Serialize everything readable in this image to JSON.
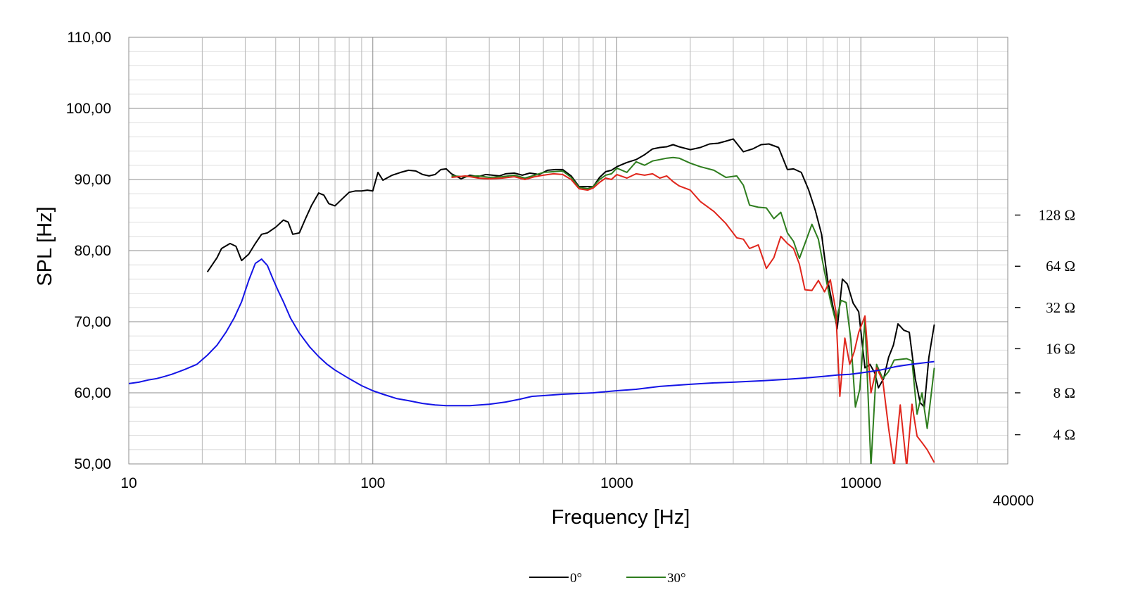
{
  "chart_data": {
    "type": "line",
    "title": "",
    "xlabel": "Frequency [Hz]",
    "ylabel": "SPL [Hz]",
    "x_scale": "log",
    "xlim": [
      10,
      40000
    ],
    "ylim": [
      50,
      110
    ],
    "grid": true,
    "legend_placement": "bottom-center",
    "x_tick_labels": [
      "10",
      "100",
      "1000",
      "10000"
    ],
    "x_extra_label": "40000",
    "y_tick_labels": [
      "110,00",
      "100,00",
      "90,00",
      "80,00",
      "70,00",
      "60,00",
      "50,00"
    ],
    "impedance_axis": {
      "labels": [
        "128 Ω",
        "64 Ω",
        "32 Ω",
        "16 Ω",
        "8 Ω",
        "4 Ω"
      ],
      "spl_positions": [
        85.0,
        77.8,
        72.0,
        66.2,
        60.0,
        54.1
      ]
    },
    "series": [
      {
        "name": "0°",
        "color": "#000000",
        "points": [
          [
            21,
            77.0
          ],
          [
            23,
            79.0
          ],
          [
            24,
            80.3
          ],
          [
            26,
            81.0
          ],
          [
            27.5,
            80.6
          ],
          [
            29,
            78.6
          ],
          [
            31,
            79.5
          ],
          [
            33,
            81.0
          ],
          [
            35,
            82.3
          ],
          [
            37,
            82.5
          ],
          [
            40,
            83.3
          ],
          [
            43,
            84.3
          ],
          [
            45,
            84.0
          ],
          [
            47,
            82.3
          ],
          [
            50,
            82.5
          ],
          [
            53,
            84.5
          ],
          [
            56,
            86.3
          ],
          [
            60,
            88.1
          ],
          [
            63,
            87.8
          ],
          [
            66,
            86.6
          ],
          [
            70,
            86.3
          ],
          [
            75,
            87.3
          ],
          [
            80,
            88.2
          ],
          [
            85,
            88.4
          ],
          [
            90,
            88.4
          ],
          [
            95,
            88.5
          ],
          [
            100,
            88.4
          ],
          [
            105,
            91.0
          ],
          [
            110,
            89.9
          ],
          [
            120,
            90.6
          ],
          [
            130,
            91.0
          ],
          [
            140,
            91.3
          ],
          [
            150,
            91.2
          ],
          [
            160,
            90.7
          ],
          [
            170,
            90.5
          ],
          [
            180,
            90.7
          ],
          [
            190,
            91.4
          ],
          [
            200,
            91.5
          ],
          [
            210,
            90.8
          ],
          [
            230,
            90.1
          ],
          [
            250,
            90.6
          ],
          [
            270,
            90.4
          ],
          [
            290,
            90.7
          ],
          [
            310,
            90.6
          ],
          [
            330,
            90.5
          ],
          [
            350,
            90.8
          ],
          [
            380,
            90.9
          ],
          [
            410,
            90.6
          ],
          [
            440,
            90.9
          ],
          [
            480,
            90.7
          ],
          [
            520,
            91.3
          ],
          [
            560,
            91.4
          ],
          [
            600,
            91.4
          ],
          [
            650,
            90.5
          ],
          [
            700,
            89.0
          ],
          [
            760,
            89.0
          ],
          [
            800,
            89.0
          ],
          [
            850,
            90.3
          ],
          [
            900,
            91.1
          ],
          [
            950,
            91.3
          ],
          [
            1000,
            91.8
          ],
          [
            1100,
            92.4
          ],
          [
            1200,
            92.8
          ],
          [
            1300,
            93.5
          ],
          [
            1400,
            94.3
          ],
          [
            1500,
            94.5
          ],
          [
            1600,
            94.6
          ],
          [
            1700,
            94.9
          ],
          [
            1800,
            94.6
          ],
          [
            2000,
            94.2
          ],
          [
            2200,
            94.5
          ],
          [
            2400,
            95.0
          ],
          [
            2600,
            95.1
          ],
          [
            2800,
            95.4
          ],
          [
            3000,
            95.7
          ],
          [
            3300,
            93.9
          ],
          [
            3600,
            94.3
          ],
          [
            3900,
            94.9
          ],
          [
            4200,
            95.0
          ],
          [
            4600,
            94.5
          ],
          [
            5000,
            91.4
          ],
          [
            5300,
            91.5
          ],
          [
            5700,
            91.0
          ],
          [
            6100,
            88.6
          ],
          [
            6500,
            85.7
          ],
          [
            6900,
            82.3
          ],
          [
            7300,
            76.0
          ],
          [
            7700,
            72.0
          ],
          [
            8000,
            69.0
          ],
          [
            8400,
            76.0
          ],
          [
            8800,
            75.3
          ],
          [
            9300,
            72.6
          ],
          [
            9800,
            71.4
          ],
          [
            10400,
            63.5
          ],
          [
            10900,
            64.0
          ],
          [
            11400,
            62.8
          ],
          [
            11800,
            60.7
          ],
          [
            12400,
            62.0
          ],
          [
            13000,
            65.0
          ],
          [
            13600,
            66.7
          ],
          [
            14200,
            69.7
          ],
          [
            15000,
            68.8
          ],
          [
            15800,
            68.5
          ],
          [
            16700,
            62.0
          ],
          [
            17500,
            58.6
          ],
          [
            18200,
            58.0
          ],
          [
            19000,
            65.0
          ],
          [
            20000,
            69.6
          ]
        ]
      },
      {
        "name": "30°",
        "color": "#2e7d1e",
        "points": [
          [
            210,
            90.5
          ],
          [
            240,
            90.4
          ],
          [
            270,
            90.5
          ],
          [
            300,
            90.3
          ],
          [
            340,
            90.4
          ],
          [
            380,
            90.6
          ],
          [
            420,
            90.2
          ],
          [
            460,
            90.6
          ],
          [
            500,
            91.0
          ],
          [
            550,
            91.1
          ],
          [
            600,
            91.2
          ],
          [
            650,
            90.3
          ],
          [
            700,
            88.9
          ],
          [
            760,
            88.7
          ],
          [
            800,
            89.0
          ],
          [
            850,
            90.0
          ],
          [
            900,
            90.6
          ],
          [
            950,
            90.8
          ],
          [
            1000,
            91.6
          ],
          [
            1100,
            91.0
          ],
          [
            1200,
            92.5
          ],
          [
            1300,
            92.0
          ],
          [
            1400,
            92.6
          ],
          [
            1500,
            92.8
          ],
          [
            1600,
            93.0
          ],
          [
            1700,
            93.1
          ],
          [
            1800,
            93.0
          ],
          [
            2000,
            92.3
          ],
          [
            2200,
            91.8
          ],
          [
            2500,
            91.3
          ],
          [
            2800,
            90.3
          ],
          [
            3100,
            90.5
          ],
          [
            3300,
            89.2
          ],
          [
            3500,
            86.4
          ],
          [
            3800,
            86.1
          ],
          [
            4100,
            86.0
          ],
          [
            4400,
            84.5
          ],
          [
            4700,
            85.4
          ],
          [
            5000,
            82.5
          ],
          [
            5300,
            81.3
          ],
          [
            5600,
            78.9
          ],
          [
            5900,
            81.0
          ],
          [
            6300,
            83.7
          ],
          [
            6700,
            81.6
          ],
          [
            7100,
            77.0
          ],
          [
            7500,
            73.0
          ],
          [
            7900,
            70.0
          ],
          [
            8300,
            73.0
          ],
          [
            8700,
            72.7
          ],
          [
            9100,
            67.5
          ],
          [
            9500,
            58.0
          ],
          [
            9900,
            60.5
          ],
          [
            10400,
            70.3
          ],
          [
            11000,
            49.7
          ],
          [
            11600,
            64.0
          ],
          [
            12300,
            62.0
          ],
          [
            13000,
            63.0
          ],
          [
            13700,
            64.6
          ],
          [
            14500,
            64.7
          ],
          [
            15400,
            64.8
          ],
          [
            16200,
            64.5
          ],
          [
            17000,
            57.0
          ],
          [
            17800,
            60.0
          ],
          [
            18700,
            55.0
          ],
          [
            20000,
            63.5
          ]
        ]
      },
      {
        "name": "",
        "color": "#e0261c",
        "points": [
          [
            210,
            90.3
          ],
          [
            240,
            90.5
          ],
          [
            270,
            90.2
          ],
          [
            300,
            90.1
          ],
          [
            340,
            90.2
          ],
          [
            380,
            90.4
          ],
          [
            420,
            90.0
          ],
          [
            460,
            90.4
          ],
          [
            500,
            90.6
          ],
          [
            550,
            90.8
          ],
          [
            600,
            90.7
          ],
          [
            650,
            90.0
          ],
          [
            700,
            88.7
          ],
          [
            760,
            88.5
          ],
          [
            800,
            88.8
          ],
          [
            850,
            89.6
          ],
          [
            900,
            90.2
          ],
          [
            950,
            90.0
          ],
          [
            1000,
            90.7
          ],
          [
            1100,
            90.2
          ],
          [
            1200,
            90.8
          ],
          [
            1300,
            90.6
          ],
          [
            1400,
            90.8
          ],
          [
            1500,
            90.2
          ],
          [
            1600,
            90.5
          ],
          [
            1700,
            89.7
          ],
          [
            1800,
            89.1
          ],
          [
            2000,
            88.5
          ],
          [
            2200,
            86.9
          ],
          [
            2500,
            85.5
          ],
          [
            2800,
            83.8
          ],
          [
            3100,
            81.8
          ],
          [
            3300,
            81.6
          ],
          [
            3500,
            80.3
          ],
          [
            3800,
            80.8
          ],
          [
            4100,
            77.5
          ],
          [
            4400,
            79.0
          ],
          [
            4700,
            82.0
          ],
          [
            5000,
            81.0
          ],
          [
            5300,
            80.3
          ],
          [
            5600,
            78.1
          ],
          [
            5900,
            74.5
          ],
          [
            6300,
            74.4
          ],
          [
            6700,
            75.8
          ],
          [
            7100,
            74.2
          ],
          [
            7500,
            75.9
          ],
          [
            7900,
            71.5
          ],
          [
            8200,
            59.5
          ],
          [
            8600,
            67.7
          ],
          [
            9000,
            64.0
          ],
          [
            9400,
            65.8
          ],
          [
            9800,
            68.5
          ],
          [
            10400,
            70.8
          ],
          [
            11000,
            60.0
          ],
          [
            11600,
            63.5
          ],
          [
            12300,
            61.7
          ],
          [
            13000,
            55.0
          ],
          [
            13700,
            49.5
          ],
          [
            14500,
            58.3
          ],
          [
            15400,
            49.6
          ],
          [
            16200,
            58.4
          ],
          [
            17000,
            53.9
          ],
          [
            17800,
            53.0
          ],
          [
            18700,
            52.0
          ],
          [
            20000,
            50.2
          ]
        ]
      },
      {
        "name": "",
        "color": "#1414e6",
        "points": [
          [
            10,
            61.3
          ],
          [
            11,
            61.5
          ],
          [
            12,
            61.8
          ],
          [
            13,
            62.0
          ],
          [
            14,
            62.3
          ],
          [
            15,
            62.6
          ],
          [
            17,
            63.3
          ],
          [
            19,
            64.0
          ],
          [
            21,
            65.3
          ],
          [
            23,
            66.7
          ],
          [
            25,
            68.5
          ],
          [
            27,
            70.5
          ],
          [
            29,
            72.8
          ],
          [
            31,
            75.8
          ],
          [
            33,
            78.2
          ],
          [
            35,
            78.8
          ],
          [
            37,
            77.9
          ],
          [
            39,
            76.0
          ],
          [
            41,
            74.3
          ],
          [
            43,
            72.8
          ],
          [
            46,
            70.5
          ],
          [
            50,
            68.4
          ],
          [
            55,
            66.5
          ],
          [
            60,
            65.1
          ],
          [
            65,
            64.0
          ],
          [
            70,
            63.2
          ],
          [
            80,
            62.0
          ],
          [
            90,
            61.0
          ],
          [
            100,
            60.3
          ],
          [
            110,
            59.8
          ],
          [
            125,
            59.2
          ],
          [
            140,
            58.9
          ],
          [
            160,
            58.5
          ],
          [
            180,
            58.3
          ],
          [
            200,
            58.2
          ],
          [
            250,
            58.2
          ],
          [
            300,
            58.4
          ],
          [
            350,
            58.7
          ],
          [
            400,
            59.1
          ],
          [
            450,
            59.5
          ],
          [
            500,
            59.6
          ],
          [
            600,
            59.8
          ],
          [
            700,
            59.9
          ],
          [
            800,
            60.0
          ],
          [
            1000,
            60.3
          ],
          [
            1200,
            60.5
          ],
          [
            1500,
            60.9
          ],
          [
            2000,
            61.2
          ],
          [
            2500,
            61.4
          ],
          [
            3000,
            61.5
          ],
          [
            3500,
            61.6
          ],
          [
            4000,
            61.7
          ],
          [
            5000,
            61.9
          ],
          [
            6000,
            62.1
          ],
          [
            7000,
            62.3
          ],
          [
            8000,
            62.5
          ],
          [
            9000,
            62.6
          ],
          [
            10000,
            62.8
          ],
          [
            12000,
            63.2
          ],
          [
            14000,
            63.7
          ],
          [
            16000,
            64.0
          ],
          [
            20000,
            64.4
          ]
        ]
      }
    ]
  }
}
